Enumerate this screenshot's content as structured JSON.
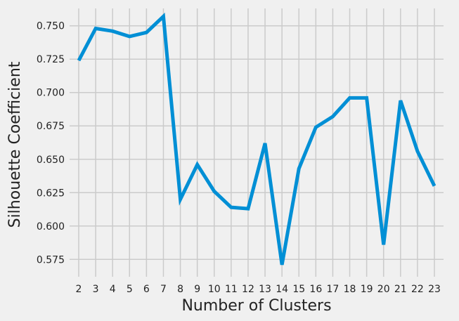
{
  "chart_data": {
    "type": "line",
    "title": "",
    "xlabel": "Number of Clusters",
    "ylabel": "Silhouette Coefficient",
    "x": [
      2,
      3,
      4,
      5,
      6,
      7,
      8,
      9,
      10,
      11,
      12,
      13,
      14,
      15,
      16,
      17,
      18,
      19,
      20,
      21,
      22,
      23
    ],
    "series": [
      {
        "values": [
          0.724,
          0.748,
          0.746,
          0.742,
          0.745,
          0.757,
          0.62,
          0.646,
          0.626,
          0.614,
          0.613,
          0.662,
          0.571,
          0.643,
          0.674,
          0.682,
          0.696,
          0.696,
          0.586,
          0.694,
          0.656,
          0.63
        ],
        "color": "#008fd5"
      }
    ],
    "xticks": [
      "2",
      "3",
      "4",
      "5",
      "6",
      "7",
      "8",
      "9",
      "10",
      "11",
      "12",
      "13",
      "14",
      "15",
      "16",
      "17",
      "18",
      "19",
      "20",
      "21",
      "22",
      "23"
    ],
    "yticks": [
      "0.575",
      "0.600",
      "0.625",
      "0.650",
      "0.675",
      "0.700",
      "0.725",
      "0.750"
    ],
    "ylim": [
      0.562,
      0.763
    ],
    "grid": true,
    "background": "#f0f0f0"
  }
}
